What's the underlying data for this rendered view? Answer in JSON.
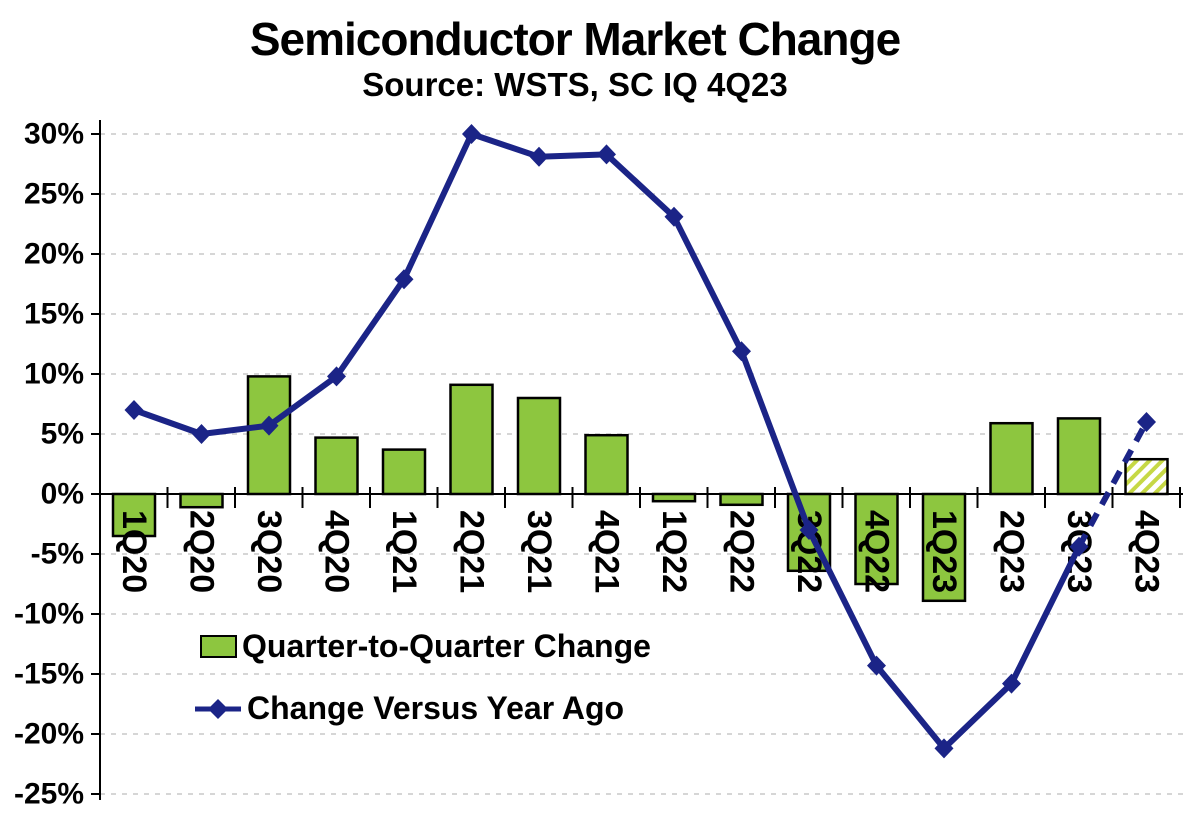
{
  "title": "Semiconductor Market Change",
  "subtitle": "Source: WSTS, SC IQ 4Q23",
  "legend": {
    "bar_label": "Quarter-to-Quarter Change",
    "line_label": "Change Versus Year Ago"
  },
  "colors": {
    "background": "#FFFFFF",
    "bar_fill": "#8DC63F",
    "bar_border": "#000000",
    "bar_forecast_stripe": "#C6D845",
    "line": "#1B2487",
    "gridline": "#C9C9C9",
    "axis": "#000000",
    "text": "#000000"
  },
  "chart_data": {
    "type": "bar",
    "subtype": "bar-line-combo",
    "categories": [
      "1Q20",
      "2Q20",
      "3Q20",
      "4Q20",
      "1Q21",
      "2Q21",
      "3Q21",
      "4Q21",
      "1Q22",
      "2Q22",
      "3Q22",
      "4Q22",
      "1Q23",
      "2Q23",
      "3Q23",
      "4Q23"
    ],
    "y_axis": {
      "max": 30,
      "min": -25,
      "step": 5,
      "unit": "%",
      "tick_labels": [
        "30%",
        "25%",
        "20%",
        "15%",
        "10%",
        "5%",
        "0%",
        "-5%",
        "-10%",
        "-15%",
        "-20%",
        "-25%"
      ]
    },
    "series": [
      {
        "name": "Quarter-to-Quarter Change",
        "type": "bar",
        "unit": "%",
        "values": [
          -3.5,
          -1.1,
          9.8,
          4.7,
          3.7,
          9.1,
          8.0,
          4.9,
          -0.6,
          -0.9,
          -6.4,
          -7.5,
          -8.9,
          5.9,
          6.3,
          2.9
        ],
        "forecast_indices": [
          15
        ],
        "forecast_style": "hatched"
      },
      {
        "name": "Change Versus Year Ago",
        "type": "line",
        "unit": "%",
        "marker": "diamond",
        "values": [
          7.0,
          5.0,
          5.7,
          9.8,
          17.9,
          30.0,
          28.1,
          28.3,
          23.1,
          11.9,
          -3.0,
          -14.3,
          -21.2,
          -15.8,
          -4.4,
          6.0
        ],
        "forecast_indices": [
          15
        ],
        "forecast_style": "dashed"
      }
    ],
    "gridlines": "horizontal-dashed",
    "legend_position": "inside-lower-left",
    "x_label_rotation": 90
  }
}
